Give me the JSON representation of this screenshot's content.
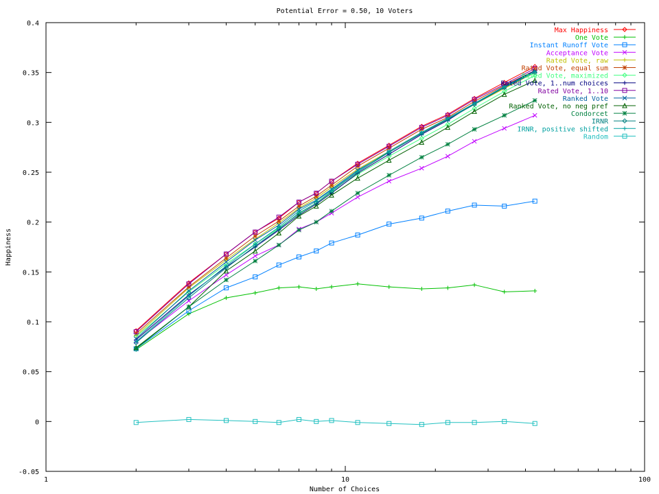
{
  "chart_data": {
    "type": "line",
    "title": "Potential Error = 0.50, 10 Voters",
    "xlabel": "Number of Choices",
    "ylabel": "Happiness",
    "xscale": "log",
    "xlim": [
      1,
      100
    ],
    "ylim": [
      -0.05,
      0.4
    ],
    "x_ticks": [
      {
        "value": 1,
        "label": "1"
      },
      {
        "value": 10,
        "label": "10"
      },
      {
        "value": 100,
        "label": "100"
      }
    ],
    "y_ticks": [
      {
        "value": -0.05,
        "label": "-0.05"
      },
      {
        "value": 0,
        "label": "0"
      },
      {
        "value": 0.05,
        "label": "0.05"
      },
      {
        "value": 0.1,
        "label": "0.1"
      },
      {
        "value": 0.15,
        "label": "0.15"
      },
      {
        "value": 0.2,
        "label": "0.2"
      },
      {
        "value": 0.25,
        "label": "0.25"
      },
      {
        "value": 0.3,
        "label": "0.3"
      },
      {
        "value": 0.35,
        "label": "0.35"
      },
      {
        "value": 0.4,
        "label": "0.4"
      }
    ],
    "grid": false,
    "legend_position": "top-right",
    "x": [
      2,
      3,
      4,
      5,
      6,
      7,
      8,
      9,
      11,
      14,
      18,
      22,
      27,
      34,
      43
    ],
    "series": [
      {
        "name": "Max Happiness",
        "color": "#ff0000",
        "marker": "diamond",
        "values": [
          0.091,
          0.139,
          0.168,
          0.19,
          0.204,
          0.22,
          0.229,
          0.241,
          0.259,
          0.277,
          0.296,
          0.308,
          0.324,
          0.34,
          0.356
        ]
      },
      {
        "name": "One Vote",
        "color": "#00c000",
        "marker": "plus",
        "values": [
          0.072,
          0.108,
          0.124,
          0.129,
          0.134,
          0.135,
          0.133,
          0.135,
          0.138,
          0.135,
          0.133,
          0.134,
          0.137,
          0.13,
          0.131
        ]
      },
      {
        "name": "Instant Runoff Vote",
        "color": "#0080ff",
        "marker": "square",
        "values": [
          0.073,
          0.111,
          0.134,
          0.145,
          0.157,
          0.165,
          0.171,
          0.179,
          0.187,
          0.198,
          0.204,
          0.211,
          0.217,
          0.216,
          0.221
        ]
      },
      {
        "name": "Acceptance Vote",
        "color": "#c000ff",
        "marker": "cross",
        "values": [
          0.08,
          0.121,
          0.147,
          0.166,
          0.177,
          0.193,
          0.2,
          0.209,
          0.225,
          0.241,
          0.254,
          0.266,
          0.281,
          0.294,
          0.307
        ]
      },
      {
        "name": "Rated Vote, raw",
        "color": "#c0c000",
        "marker": "plus",
        "values": [
          0.086,
          0.134,
          0.162,
          0.183,
          0.199,
          0.214,
          0.224,
          0.235,
          0.253,
          0.271,
          0.29,
          0.303,
          0.318,
          0.334,
          0.35
        ]
      },
      {
        "name": "Rated Vote, equal sum",
        "color": "#c04000",
        "marker": "star",
        "values": [
          0.088,
          0.135,
          0.164,
          0.186,
          0.201,
          0.216,
          0.226,
          0.237,
          0.256,
          0.274,
          0.293,
          0.305,
          0.321,
          0.337,
          0.352
        ]
      },
      {
        "name": "Rated Vote, maximized",
        "color": "#40ff80",
        "marker": "diamond",
        "values": [
          0.085,
          0.13,
          0.158,
          0.178,
          0.194,
          0.208,
          0.219,
          0.23,
          0.248,
          0.266,
          0.284,
          0.298,
          0.314,
          0.331,
          0.347
        ]
      },
      {
        "name": "Rated Vote, 1..num choices",
        "color": "#000080",
        "marker": "plus",
        "values": [
          0.082,
          0.127,
          0.155,
          0.175,
          0.192,
          0.207,
          0.218,
          0.229,
          0.249,
          0.268,
          0.288,
          0.302,
          0.319,
          0.336,
          0.352
        ]
      },
      {
        "name": "Rated Vote, 1..10",
        "color": "#8000a0",
        "marker": "square",
        "values": [
          0.09,
          0.138,
          0.168,
          0.19,
          0.205,
          0.22,
          0.229,
          0.241,
          0.258,
          0.276,
          0.295,
          0.307,
          0.323,
          0.338,
          0.354
        ]
      },
      {
        "name": "Ranked Vote",
        "color": "#0060a0",
        "marker": "cross",
        "values": [
          0.083,
          0.131,
          0.16,
          0.182,
          0.197,
          0.213,
          0.222,
          0.233,
          0.252,
          0.27,
          0.289,
          0.303,
          0.319,
          0.335,
          0.351
        ]
      },
      {
        "name": "Ranked Vote, no neg pref",
        "color": "#006000",
        "marker": "triangle",
        "values": [
          0.074,
          0.115,
          0.151,
          0.171,
          0.189,
          0.206,
          0.216,
          0.227,
          0.244,
          0.262,
          0.28,
          0.295,
          0.311,
          0.328,
          0.342
        ]
      },
      {
        "name": "Condorcet",
        "color": "#008040",
        "marker": "star",
        "values": [
          0.073,
          0.115,
          0.142,
          0.161,
          0.177,
          0.192,
          0.2,
          0.211,
          0.229,
          0.247,
          0.265,
          0.278,
          0.293,
          0.307,
          0.322
        ]
      },
      {
        "name": "IRNR",
        "color": "#008080",
        "marker": "diamond",
        "values": [
          0.079,
          0.124,
          0.154,
          0.176,
          0.193,
          0.209,
          0.219,
          0.231,
          0.25,
          0.27,
          0.289,
          0.303,
          0.318,
          0.335,
          0.35
        ]
      },
      {
        "name": "IRNR, positive shifted",
        "color": "#00a0a0",
        "marker": "plus",
        "values": [
          0.08,
          0.126,
          0.156,
          0.178,
          0.195,
          0.211,
          0.221,
          0.232,
          0.251,
          0.271,
          0.29,
          0.304,
          0.319,
          0.336,
          0.351
        ]
      },
      {
        "name": "Random",
        "color": "#20c0c0",
        "marker": "square",
        "values": [
          -0.001,
          0.002,
          0.001,
          0.0,
          -0.001,
          0.002,
          0.0,
          0.001,
          -0.001,
          -0.002,
          -0.003,
          -0.001,
          -0.001,
          0.0,
          -0.002
        ]
      }
    ]
  }
}
